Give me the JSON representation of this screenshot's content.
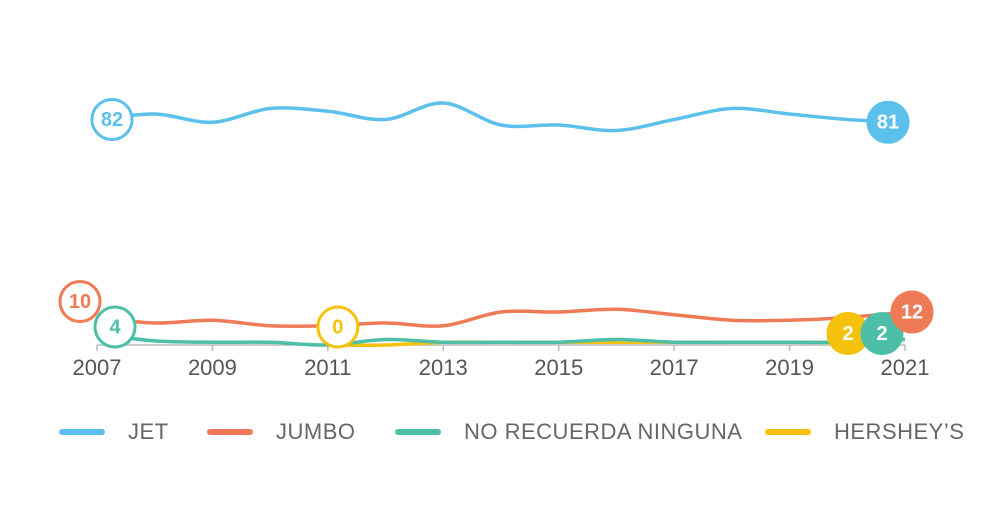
{
  "chart_data": {
    "type": "line",
    "x": [
      2007,
      2008,
      2009,
      2010,
      2011,
      2012,
      2013,
      2014,
      2015,
      2016,
      2017,
      2018,
      2019,
      2020,
      2021
    ],
    "xlim": [
      2007,
      2021
    ],
    "xticks": [
      2007,
      2009,
      2011,
      2013,
      2015,
      2017,
      2019,
      2021
    ],
    "series": [
      {
        "name": "JET",
        "color": "#5bc0eb",
        "values": [
          82,
          84,
          81,
          86,
          85,
          82,
          88,
          80,
          80,
          78,
          82,
          86,
          84,
          82,
          81
        ]
      },
      {
        "name": "JUMBO",
        "color": "#ee7b55",
        "values": [
          10,
          8,
          9,
          7,
          7,
          8,
          7,
          12,
          12,
          13,
          11,
          9,
          9,
          10,
          12
        ]
      },
      {
        "name": "NO RECUERDA NINGUNA",
        "color": "#4dbfa8",
        "values": [
          4,
          1.5,
          1,
          1,
          0,
          2,
          1,
          1,
          1,
          2,
          1,
          1,
          1,
          1,
          2
        ]
      },
      {
        "name": "HERSHEY’S",
        "color": "#f4c20d",
        "values": [
          null,
          null,
          null,
          null,
          0,
          0,
          1,
          1,
          1,
          1,
          1,
          1,
          1,
          1,
          2
        ]
      }
    ]
  }
}
